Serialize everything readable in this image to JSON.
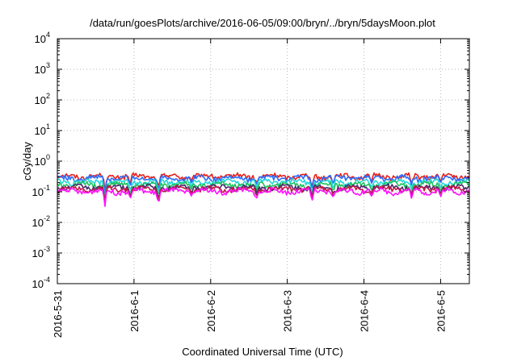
{
  "chart_data": {
    "type": "line",
    "title": "/data/run/goesPlots/archive/2016-06-05/09:00/bryn/../bryn/5daysMoon.plot",
    "xlabel": "Coordinated Universal Time (UTC)",
    "ylabel": "cGy/day",
    "yscale": "log",
    "ylim": [
      0.0001,
      10000
    ],
    "y_ticks": [
      {
        "base": "10",
        "exp": "4"
      },
      {
        "base": "10",
        "exp": "3"
      },
      {
        "base": "10",
        "exp": "2"
      },
      {
        "base": "10",
        "exp": "1"
      },
      {
        "base": "10",
        "exp": "0"
      },
      {
        "base": "10",
        "exp": "-1"
      },
      {
        "base": "10",
        "exp": "-2"
      },
      {
        "base": "10",
        "exp": "-3"
      },
      {
        "base": "10",
        "exp": "-4"
      }
    ],
    "x_range_days": [
      "2016-05-31",
      "2016-06-05 09:00"
    ],
    "x_tick_labels": [
      "2016-5-31",
      "2016-6-1",
      "2016-6-2",
      "2016-6-3",
      "2016-6-4",
      "2016-6-5"
    ],
    "grid": true,
    "legend": "none",
    "series": [
      {
        "color": "#e8201a",
        "base": 0.32,
        "amplitude": 0.06
      },
      {
        "color": "#2a6bff",
        "base": 0.28,
        "amplitude": 0.06
      },
      {
        "color": "#22d8d8",
        "base": 0.21,
        "amplitude": 0.04
      },
      {
        "color": "#20c060",
        "base": 0.17,
        "amplitude": 0.03
      },
      {
        "color": "#4a2a6a",
        "base": 0.14,
        "amplitude": 0.025
      },
      {
        "color": "#c01848",
        "base": 0.125,
        "amplitude": 0.02
      },
      {
        "color": "#ff10ff",
        "base": 0.105,
        "amplitude": 0.02
      }
    ],
    "dips": [
      {
        "day": 0.62,
        "depth": 0.03
      },
      {
        "day": 0.95,
        "depth": 0.05
      },
      {
        "day": 1.32,
        "depth": 0.035
      },
      {
        "day": 1.75,
        "depth": 0.07
      },
      {
        "day": 2.6,
        "depth": 0.06
      },
      {
        "day": 3.32,
        "depth": 0.04
      },
      {
        "day": 3.6,
        "depth": 0.06
      },
      {
        "day": 4.1,
        "depth": 0.07
      },
      {
        "day": 4.62,
        "depth": 0.06
      },
      {
        "day": 5.0,
        "depth": 0.065
      }
    ]
  }
}
